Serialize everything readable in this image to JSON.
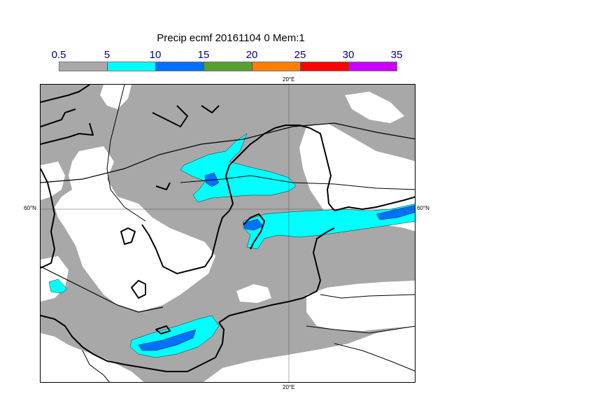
{
  "title": "Precip ecmf 20161104 0 Mem:1",
  "colorbar": {
    "labels": [
      "0.5",
      "5",
      "10",
      "15",
      "20",
      "25",
      "30",
      "35"
    ],
    "colors": [
      "#a8a8a8",
      "#00ffff",
      "#0070ff",
      "#55a030",
      "#ff8000",
      "#ff0000",
      "#cc00ff"
    ]
  },
  "map": {
    "labels": {
      "lon_top": "20°E",
      "lon_bottom": "20°E",
      "lat_left": "60°N",
      "lat_right": "60°N"
    },
    "colors": {
      "light": "#a8a8a8",
      "cyan": "#00ffff",
      "blue": "#0070ff",
      "coast": "#000000"
    }
  }
}
